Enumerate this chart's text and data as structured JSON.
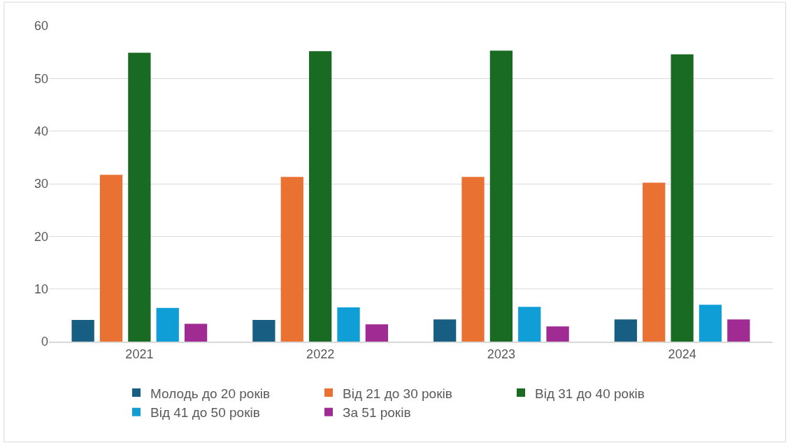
{
  "chart_data": {
    "type": "bar",
    "categories": [
      "2021",
      "2022",
      "2023",
      "2024"
    ],
    "series": [
      {
        "name": "Молодь до 20 років",
        "color": "#175e82",
        "values": [
          4.1,
          4.1,
          4.2,
          4.2
        ]
      },
      {
        "name": "Від 21 до 30 років",
        "color": "#e97132",
        "values": [
          31.7,
          31.3,
          31.3,
          30.2
        ]
      },
      {
        "name": "Від 31 до 40 років",
        "color": "#196b24",
        "values": [
          54.9,
          55.2,
          55.3,
          54.6
        ]
      },
      {
        "name": "Від 41 до 50 років",
        "color": "#0f9ed5",
        "values": [
          6.4,
          6.5,
          6.6,
          7.0
        ]
      },
      {
        "name": "За 51 років",
        "color": "#a02b93",
        "values": [
          3.4,
          3.3,
          2.9,
          4.2
        ]
      }
    ],
    "ylim": [
      0,
      60
    ],
    "yticks": [
      0,
      10,
      20,
      30,
      40,
      50,
      60
    ],
    "grid": "y",
    "legend": "bottom"
  }
}
